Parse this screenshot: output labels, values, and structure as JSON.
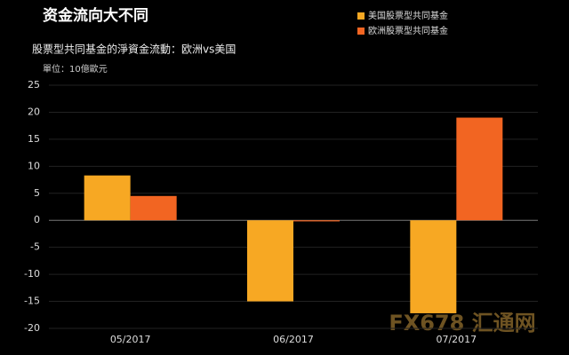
{
  "chart_data": {
    "type": "bar",
    "title": "资金流向大不同",
    "subtitle": "股票型共同基金的淨資金流動：欧洲vs美国",
    "unit_label": "單位：10億歐元",
    "categories": [
      "05/2017",
      "06/2017",
      "07/2017"
    ],
    "series": [
      {
        "name": "美国股票型共同基金",
        "color": "#f7a823",
        "values": [
          8.3,
          -15,
          -17.2
        ]
      },
      {
        "name": "欧洲股票型共同基金",
        "color": "#f26522",
        "values": [
          4.5,
          -0.2,
          19
        ]
      }
    ],
    "ylim": [
      -20,
      25
    ],
    "yticks": [
      -20,
      -15,
      -10,
      -5,
      0,
      5,
      10,
      15,
      20,
      25
    ],
    "grid": true,
    "legend": "top-right",
    "watermark": "FX678 汇通网"
  }
}
